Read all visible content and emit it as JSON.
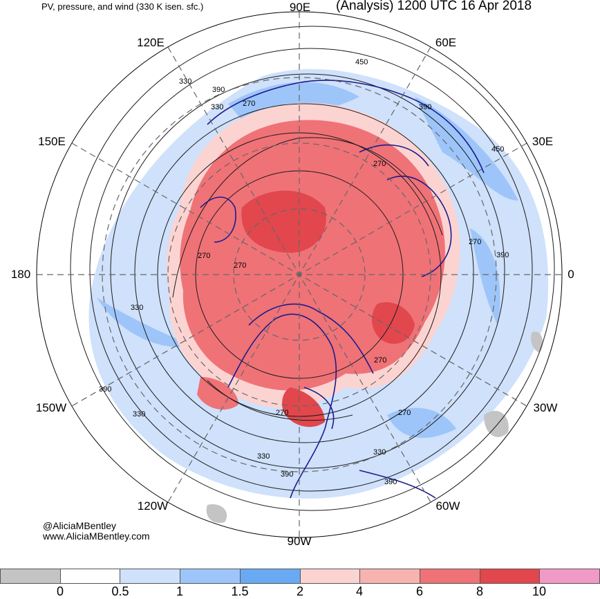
{
  "title_left": "PV, pressure, and wind (330 K isen. sfc.)",
  "title_right": "(Analysis) 1200 UTC 16 Apr 2018",
  "longitude_labels": [
    "90E",
    "60E",
    "30E",
    "0",
    "30W",
    "60W",
    "90W",
    "120W",
    "150W",
    "180",
    "150E",
    "120E"
  ],
  "contour_labels": [
    "450",
    "390",
    "330",
    "270",
    "270",
    "450",
    "390",
    "270",
    "390",
    "330",
    "270",
    "270",
    "270",
    "270",
    "330",
    "390",
    "330",
    "270",
    "330",
    "390",
    "390",
    "330"
  ],
  "credit": {
    "handle": "@AliciaMBentley",
    "site": "www.AliciaMBentley.com"
  },
  "colorbar": {
    "colors": [
      "#c4c4c4",
      "#ffffff",
      "#cfe1fb",
      "#9ec5f9",
      "#6aaaf3",
      "#fbd4d2",
      "#f7b3b0",
      "#ef7277",
      "#e1474d",
      "#f29ac7"
    ],
    "ticks": [
      "0",
      "0.5",
      "1",
      "1.5",
      "2",
      "4",
      "6",
      "8",
      "10"
    ]
  },
  "colors": {
    "coastline": "#1b1b8c",
    "contour": "#1a1a1a",
    "grid": "#666666",
    "high_pv": "#ef7277",
    "low_pv": "#9ec5f9"
  }
}
